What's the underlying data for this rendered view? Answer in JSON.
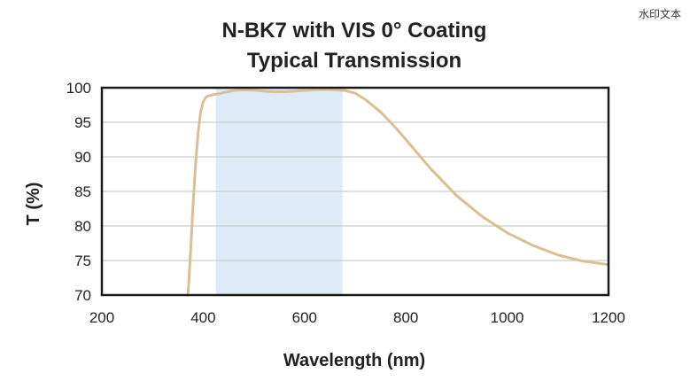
{
  "watermark": "水印文本",
  "chart_data": {
    "type": "line",
    "title": [
      "N-BK7 with VIS 0° Coating",
      "Typical Transmission"
    ],
    "xlabel": "Wavelength (nm)",
    "ylabel": "T (%)",
    "xlim": [
      200,
      1200
    ],
    "ylim": [
      70,
      100
    ],
    "xticks": [
      200,
      400,
      600,
      800,
      1000,
      1200
    ],
    "yticks": [
      70,
      75,
      80,
      85,
      90,
      95,
      100
    ],
    "grid": true,
    "highlight_band": {
      "from": 425,
      "to": 675,
      "color": "#deebf7"
    },
    "colors": {
      "line": "#d9bf93",
      "frame": "#1a1a1a",
      "grid": "#cccccc"
    },
    "series": [
      {
        "x": [
          370,
          375,
          380,
          385,
          390,
          395,
          400,
          405,
          410,
          420,
          430,
          440,
          460,
          480,
          500,
          520,
          540,
          560,
          580,
          600,
          620,
          640,
          660,
          680,
          700,
          720,
          750,
          780,
          800,
          850,
          900,
          950,
          1000,
          1050,
          1100,
          1150,
          1200
        ],
        "y": [
          70,
          76,
          83,
          89,
          93.5,
          96.5,
          98,
          98.6,
          98.8,
          99,
          99.1,
          99.3,
          99.6,
          99.7,
          99.65,
          99.5,
          99.4,
          99.4,
          99.5,
          99.6,
          99.7,
          99.75,
          99.7,
          99.6,
          99.2,
          98.3,
          96.5,
          94.2,
          92.5,
          88.2,
          84.4,
          81.4,
          79,
          77.2,
          75.8,
          74.9,
          74.4
        ]
      }
    ]
  }
}
